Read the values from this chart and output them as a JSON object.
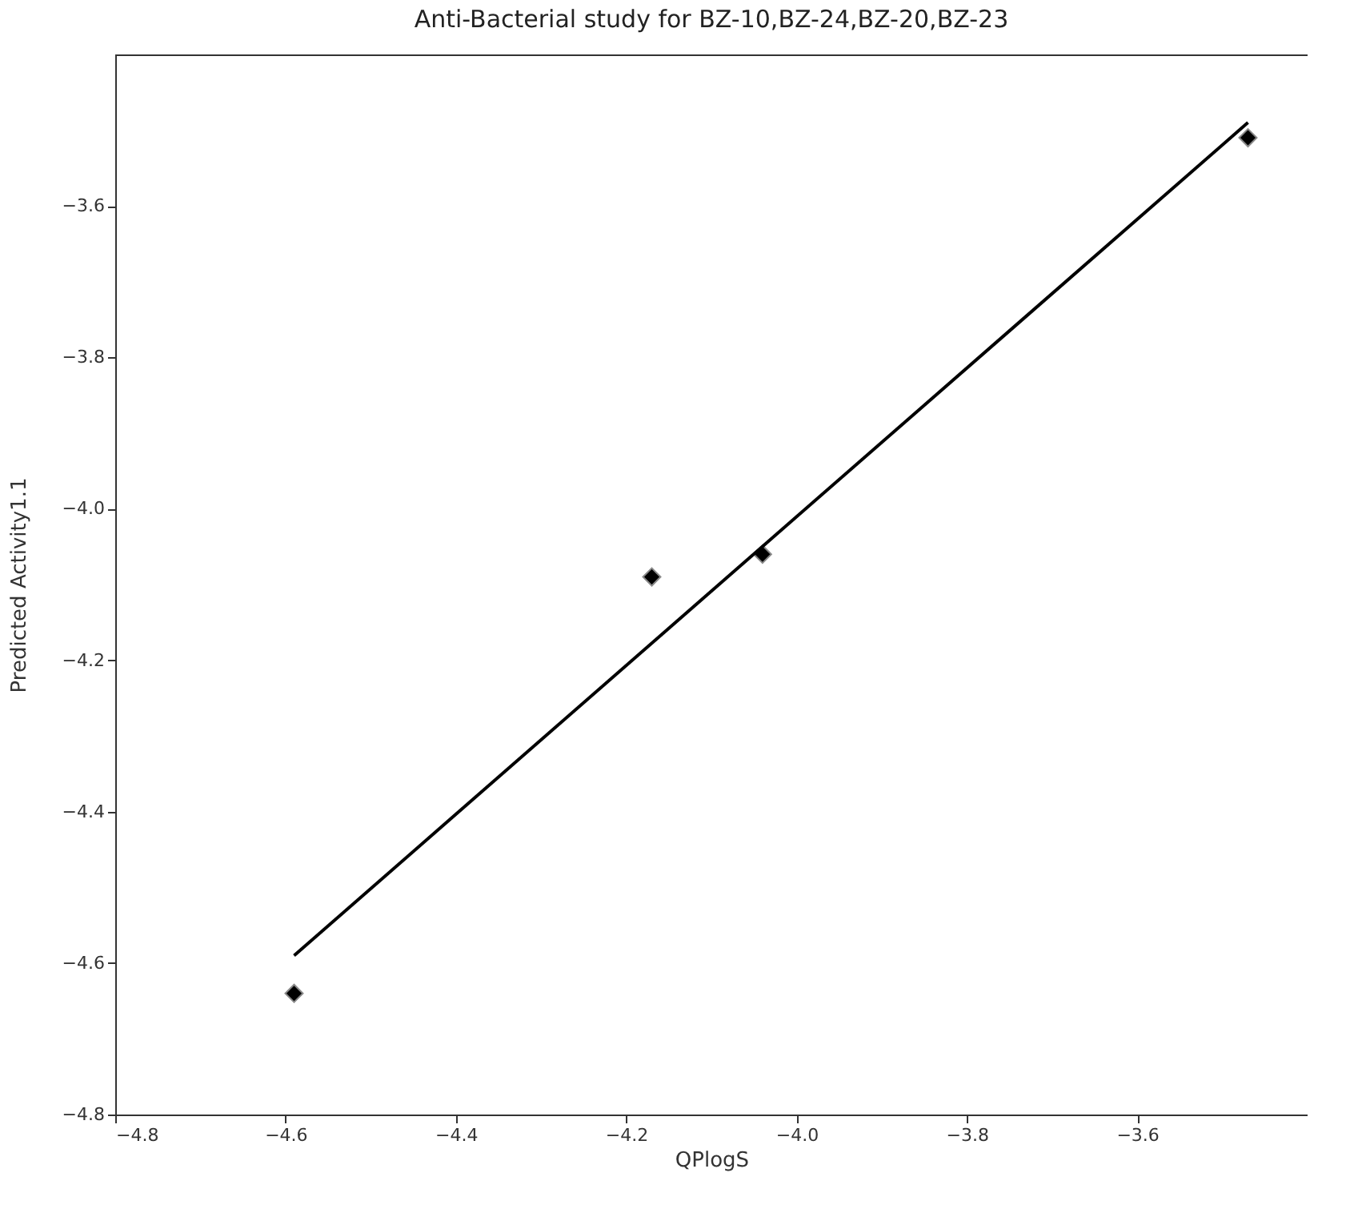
{
  "chart_data": {
    "type": "scatter",
    "title": "Anti-Bacterial study for BZ-10,BZ-24,BZ-20,BZ-23",
    "xlabel": "QPlogS",
    "ylabel": "Predicted Activity1.1",
    "xlim": [
      -4.8,
      -3.4
    ],
    "xticks": [
      -4.8,
      -4.6,
      -4.4,
      -4.2,
      {
        "value": -4,
        "label": "−4.0"
      },
      -3.8,
      -3.6
    ],
    "ylim": [
      -4.8,
      -3.4
    ],
    "yticks": [
      -4.8,
      -4.6,
      -4.4,
      -4.2,
      {
        "value": -4,
        "label": "−4.0"
      },
      -3.8,
      -3.6
    ],
    "grid": false,
    "series": [
      {
        "marker": "diamond",
        "color": "#000000",
        "x": [
          -4.59,
          -4.17,
          -4.04,
          -3.47
        ],
        "values": [
          -4.64,
          -4.09,
          -4.06,
          -3.51
        ]
      },
      {
        "type": "line",
        "marker": "none",
        "color": "#000000",
        "x": [
          -4.59,
          -3.47
        ],
        "values": [
          -4.59,
          -3.49
        ]
      }
    ]
  }
}
